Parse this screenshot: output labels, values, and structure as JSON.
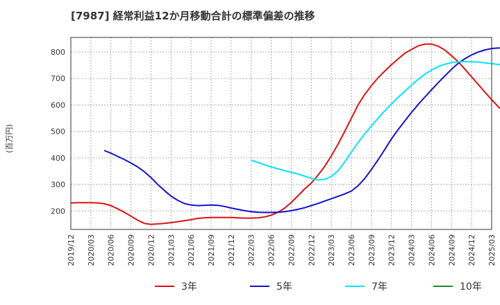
{
  "chart_data": {
    "type": "line",
    "title": "[7987]  経常利益12か月移動合計の標準偏差の推移",
    "ylabel": "(百万円)",
    "xlabel": "",
    "ylim": [
      130,
      855
    ],
    "yticks": [
      200,
      300,
      400,
      500,
      600,
      700,
      800
    ],
    "x_ticks": [
      "2019/12",
      "2020/03",
      "2020/06",
      "2020/09",
      "2020/12",
      "2021/03",
      "2021/06",
      "2021/09",
      "2021/12",
      "2022/03",
      "2022/06",
      "2022/09",
      "2022/12",
      "2023/03",
      "2023/06",
      "2023/09",
      "2023/12",
      "2024/03",
      "2024/06",
      "2024/09",
      "2024/12",
      "2025/03"
    ],
    "x_start": "2019-12",
    "grid": true,
    "legend_position": "bottom",
    "series": [
      {
        "name": "3年",
        "color": "#dd1111",
        "start": "2019-12",
        "values": [
          230,
          231,
          231,
          231,
          230,
          227,
          220,
          208,
          195,
          180,
          165,
          153,
          149,
          151,
          153,
          156,
          159,
          163,
          167,
          172,
          174,
          175,
          175,
          175,
          175,
          174,
          173,
          173,
          174,
          177,
          184,
          195,
          210,
          232,
          257,
          283,
          305,
          335,
          368,
          408,
          452,
          500,
          550,
          600,
          640,
          673,
          703,
          728,
          752,
          774,
          795,
          810,
          823,
          830,
          830,
          822,
          807,
          786,
          763,
          735,
          706,
          677,
          648,
          620,
          593,
          570,
          550
        ]
      },
      {
        "name": "5年",
        "color": "#1111cc",
        "start": "2020-05",
        "values": [
          428,
          418,
          406,
          394,
          381,
          366,
          348,
          326,
          300,
          277,
          256,
          240,
          228,
          222,
          220,
          221,
          222,
          221,
          217,
          211,
          206,
          201,
          197,
          195,
          194,
          194,
          195,
          197,
          201,
          206,
          212,
          220,
          228,
          237,
          246,
          255,
          264,
          275,
          295,
          322,
          357,
          393,
          432,
          472,
          507,
          540,
          572,
          602,
          630,
          657,
          684,
          710,
          735,
          757,
          775,
          789,
          800,
          808,
          813,
          815,
          815,
          813,
          810,
          806,
          803
        ]
      },
      {
        "name": "7年",
        "color": "#00e5ff",
        "start": "2022-03",
        "values": [
          392,
          383,
          374,
          366,
          359,
          352,
          346,
          339,
          331,
          323,
          317,
          319,
          330,
          352,
          385,
          422,
          458,
          491,
          521,
          550,
          578,
          604,
          629,
          652,
          675,
          697,
          716,
          732,
          745,
          754,
          760,
          763,
          764,
          763,
          762,
          759,
          756,
          753,
          749,
          746
        ]
      },
      {
        "name": "10年",
        "color": "#228b22",
        "start": null,
        "values": []
      }
    ]
  }
}
